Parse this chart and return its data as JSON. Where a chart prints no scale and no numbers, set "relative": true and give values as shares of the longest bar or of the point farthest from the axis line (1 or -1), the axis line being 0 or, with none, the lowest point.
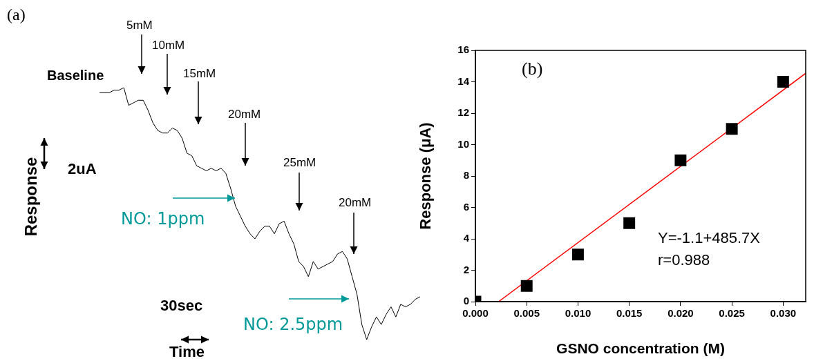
{
  "chart_data": [
    {
      "type": "line",
      "relative": true,
      "color": "#000000",
      "xlabel": "Time",
      "ylabel": "Response",
      "categories": [
        null,
        null,
        null,
        null,
        null,
        null,
        null,
        null,
        null,
        null,
        null,
        null,
        null,
        null,
        null,
        null,
        null,
        null,
        null,
        null,
        null,
        null,
        null,
        null,
        null,
        null,
        null,
        null,
        null,
        null,
        null,
        null,
        null,
        null,
        null,
        null,
        null,
        null,
        null,
        null,
        null,
        null,
        null,
        null,
        null,
        null,
        null,
        null,
        null,
        null,
        null,
        null,
        null,
        null,
        null,
        null,
        null,
        null,
        null,
        null,
        null,
        null,
        null,
        null,
        null,
        null,
        null
      ],
      "values": [
        0.98,
        0.98,
        0.98,
        0.99,
        0.99,
        1.0,
        0.93,
        0.94,
        0.95,
        0.95,
        0.91,
        0.86,
        0.83,
        0.82,
        0.82,
        0.84,
        0.83,
        0.8,
        0.74,
        0.73,
        0.69,
        0.68,
        0.67,
        0.68,
        0.67,
        0.68,
        0.66,
        0.6,
        0.53,
        0.49,
        0.45,
        0.42,
        0.4,
        0.43,
        0.45,
        0.45,
        0.42,
        0.46,
        0.47,
        0.42,
        0.38,
        0.31,
        0.29,
        0.25,
        0.31,
        0.28,
        0.29,
        0.3,
        0.31,
        0.34,
        0.35,
        0.32,
        0.25,
        0.18,
        0.06,
        0.0,
        0.05,
        0.09,
        0.06,
        0.1,
        0.13,
        0.09,
        0.14,
        0.13,
        0.14,
        0.16,
        0.17
      ],
      "annotations": [
        "(a)",
        "Baseline",
        "5mM",
        "10mM",
        "15mM",
        "20mM",
        "25mM",
        "20mM",
        "2uA",
        "30sec",
        "NO: 1ppm",
        "NO: 2.5ppm"
      ]
    },
    {
      "type": "scatter",
      "xlabel": "GSNO concentration (M)",
      "ylabel": "Response (μA)",
      "xlim": [
        0,
        0.0322
      ],
      "ylim": [
        0,
        16
      ],
      "xticks": [
        {
          "value": 0,
          "label": "0.000"
        },
        {
          "value": 0.005,
          "label": "0.005"
        },
        {
          "value": 0.01,
          "label": "0.010"
        },
        {
          "value": 0.015,
          "label": "0.015"
        },
        {
          "value": 0.02,
          "label": "0.020"
        },
        {
          "value": 0.025,
          "label": "0.025"
        },
        {
          "value": 0.03,
          "label": "0.030"
        }
      ],
      "yticks": [
        0,
        2,
        4,
        6,
        8,
        10,
        12,
        14,
        16
      ],
      "series": [
        {
          "marker": "square",
          "color": "#000000",
          "x": [
            0,
            0.005,
            0.01,
            0.015,
            0.02,
            0.025,
            0.03
          ],
          "values": [
            0,
            1,
            3,
            5,
            9,
            11,
            14
          ]
        },
        {
          "type": "line",
          "marker": "none",
          "color": "#ff0000",
          "x": [
            0.00226,
            0.0322
          ],
          "values": [
            0,
            14.54
          ]
        }
      ],
      "annotations": [
        "(b)",
        "Y=-1.1+485.7X",
        "r=0.988"
      ]
    }
  ]
}
